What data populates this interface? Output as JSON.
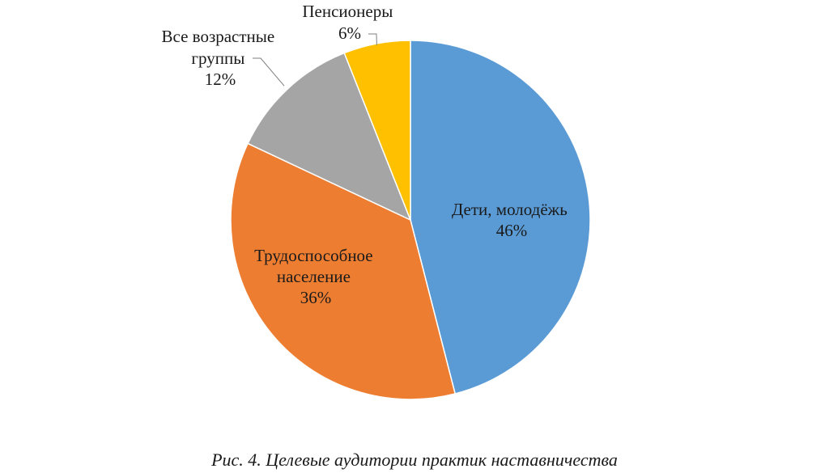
{
  "chart_data": {
    "type": "pie",
    "title": "",
    "start_angle_deg": 0,
    "direction": "clockwise",
    "slices": [
      {
        "label_lines": [
          "Дети, молодёжь"
        ],
        "value": 46,
        "value_label": "46%",
        "color": "#5b9bd5"
      },
      {
        "label_lines": [
          "Трудоспособное",
          "население"
        ],
        "value": 36,
        "value_label": "36%",
        "color": "#ed7d31"
      },
      {
        "label_lines": [
          "Все возрастные",
          "группы"
        ],
        "value": 12,
        "value_label": "12%",
        "color": "#a5a5a5"
      },
      {
        "label_lines": [
          "Пенсионеры"
        ],
        "value": 6,
        "value_label": "6%",
        "color": "#ffc000"
      }
    ]
  },
  "caption": "Рис. 4. Целевые аудитории практик наставничества"
}
